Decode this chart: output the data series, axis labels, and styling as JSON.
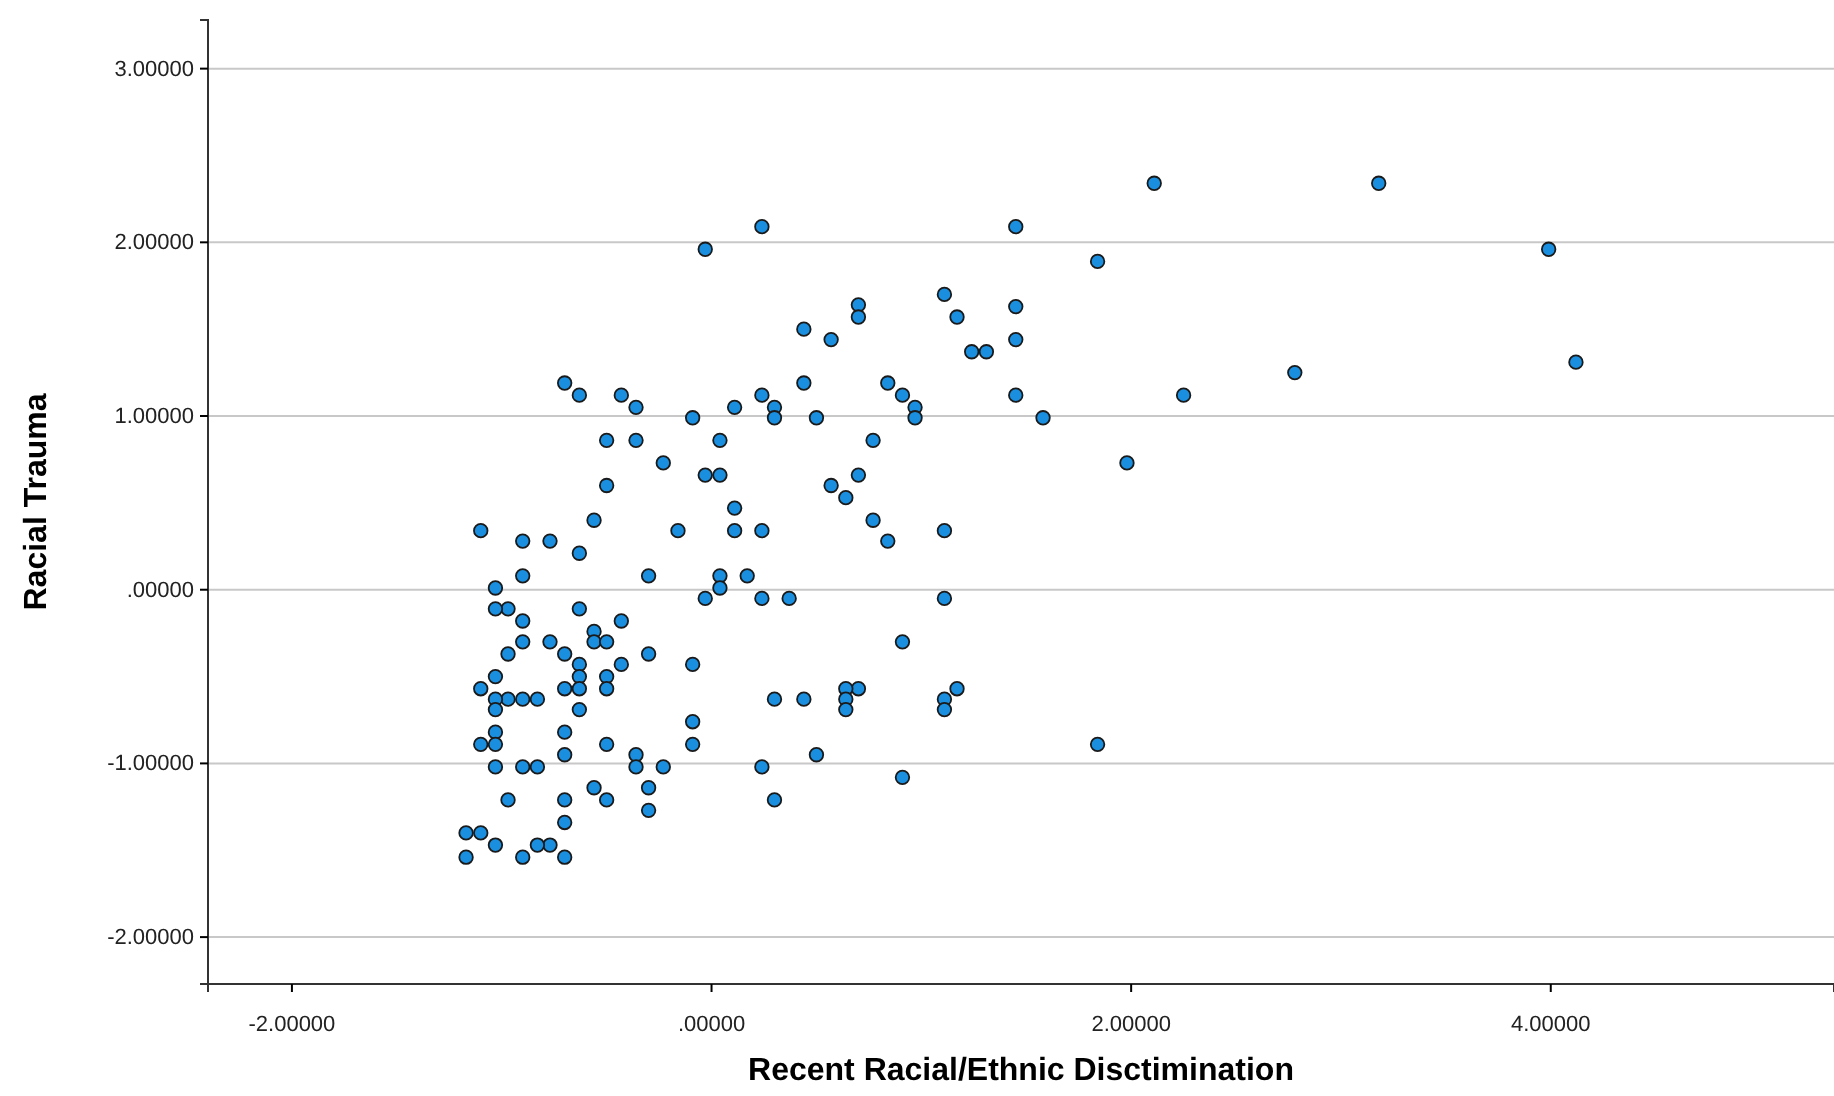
{
  "chart_data": {
    "type": "scatter",
    "xlabel": "Recent Racial/Ethnic Disctimination",
    "ylabel": "Racial Trauma",
    "xlim": [
      -2.4,
      5.35
    ],
    "ylim": [
      -2.27,
      3.28
    ],
    "xticks": [
      {
        "value": -2,
        "label": "-2.00000"
      },
      {
        "value": 0,
        "label": ".00000"
      },
      {
        "value": 2,
        "label": "2.00000"
      },
      {
        "value": 4,
        "label": "4.00000"
      }
    ],
    "yticks": [
      {
        "value": -2,
        "label": "-2.00000"
      },
      {
        "value": -1,
        "label": "-1.00000"
      },
      {
        "value": 0,
        "label": ".00000"
      },
      {
        "value": 1,
        "label": "1.00000"
      },
      {
        "value": 2,
        "label": "2.00000"
      },
      {
        "value": 3,
        "label": "3.00000"
      }
    ],
    "grid": "y",
    "marker": "circle",
    "series": [
      {
        "color": "#1a8fe0",
        "x": [
          -0.03,
          0.24,
          1.45,
          2.11,
          3.18,
          3.99,
          1.84,
          4.12,
          2.78,
          2.25,
          1.98,
          1.84,
          1.58,
          1.45,
          1.45,
          1.45,
          1.11,
          1.17,
          1.24,
          1.31,
          1.11,
          1.11,
          1.17,
          1.11,
          1.11,
          0.91,
          0.91,
          0.97,
          0.97,
          0.91,
          0.84,
          0.77,
          0.77,
          0.84,
          0.7,
          0.7,
          0.7,
          0.57,
          0.57,
          0.64,
          0.7,
          0.64,
          0.64,
          0.64,
          0.5,
          0.44,
          0.44,
          0.44,
          0.5,
          0.3,
          0.3,
          0.24,
          0.24,
          0.24,
          0.37,
          0.17,
          0.3,
          0.24,
          0.3,
          0.11,
          0.11,
          0.11,
          0.04,
          0.04,
          -0.03,
          -0.09,
          0.04,
          0.04,
          -0.03,
          -0.09,
          -0.09,
          -0.09,
          -0.16,
          -0.23,
          -0.3,
          -0.3,
          -0.23,
          -0.3,
          -0.3,
          -0.36,
          -0.36,
          -0.36,
          -0.43,
          -0.36,
          -0.5,
          -0.5,
          -0.56,
          -0.63,
          -0.7,
          -0.63,
          -0.43,
          -0.56,
          -0.56,
          -0.5,
          -0.43,
          -0.5,
          -0.5,
          -0.63,
          -0.63,
          -0.63,
          -0.63,
          -0.7,
          -0.7,
          -0.63,
          -0.7,
          -0.7,
          -0.5,
          -0.56,
          -0.5,
          -0.7,
          -0.7,
          -0.7,
          -0.77,
          -0.77,
          -0.9,
          -0.9,
          -0.9,
          -0.9,
          -0.97,
          -0.97,
          -0.83,
          -0.9,
          -0.97,
          -0.83,
          -0.9,
          -0.97,
          -0.77,
          -0.83,
          -0.9,
          -1.1,
          -1.03,
          -1.03,
          -1.03,
          -1.1,
          -1.03,
          -1.03,
          -1.03,
          -1.03,
          -1.1,
          -1.03,
          -1.03,
          -1.1,
          -1.17,
          -1.17
        ],
        "values": [
          1.96,
          2.09,
          2.09,
          2.34,
          2.34,
          1.96,
          1.89,
          1.31,
          1.25,
          1.12,
          0.73,
          -0.89,
          0.99,
          1.12,
          1.44,
          1.63,
          1.7,
          1.57,
          1.37,
          1.37,
          0.34,
          -0.05,
          -0.57,
          -0.63,
          -0.69,
          -0.3,
          -1.08,
          1.05,
          0.99,
          1.12,
          1.19,
          0.86,
          0.4,
          0.28,
          1.64,
          1.57,
          0.66,
          1.44,
          0.6,
          0.53,
          -0.57,
          -0.57,
          -0.63,
          -0.69,
          0.99,
          1.5,
          1.19,
          -0.63,
          -0.95,
          1.05,
          0.99,
          1.12,
          0.34,
          -0.05,
          -0.05,
          0.08,
          -0.63,
          -1.02,
          -1.21,
          1.05,
          0.47,
          0.34,
          0.86,
          0.66,
          0.66,
          0.99,
          0.08,
          0.01,
          -0.05,
          -0.43,
          -0.76,
          -0.89,
          0.34,
          0.73,
          0.08,
          -0.37,
          -1.02,
          -1.14,
          -1.27,
          -0.95,
          -1.02,
          1.05,
          1.12,
          0.86,
          0.86,
          0.6,
          0.4,
          1.12,
          1.19,
          0.21,
          -0.18,
          -0.24,
          -0.3,
          -0.3,
          -0.43,
          -0.5,
          -0.57,
          -0.11,
          -0.43,
          -0.5,
          -0.57,
          -0.37,
          -0.57,
          -0.69,
          -0.82,
          -0.95,
          -0.89,
          -1.14,
          -1.21,
          -1.21,
          -1.34,
          -1.54,
          -0.3,
          0.28,
          0.28,
          0.08,
          -0.18,
          -0.3,
          -0.11,
          -0.37,
          -0.63,
          -0.63,
          -0.63,
          -1.02,
          -1.02,
          -1.21,
          -1.47,
          -1.47,
          -1.54,
          0.34,
          0.01,
          -0.11,
          -0.5,
          -0.57,
          -0.63,
          -0.69,
          -0.82,
          -0.89,
          -0.89,
          -1.02,
          -1.47,
          -1.4,
          -1.4,
          -1.54
        ]
      }
    ]
  }
}
